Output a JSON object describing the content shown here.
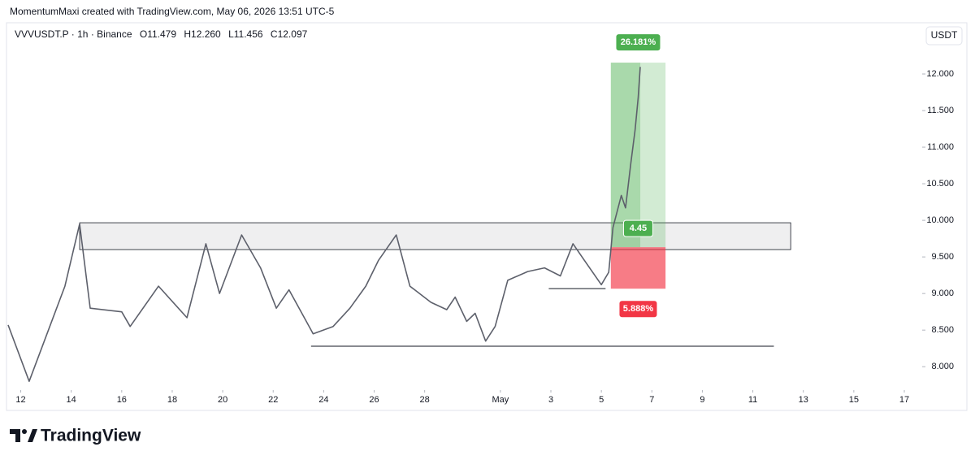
{
  "header": {
    "credit": "MomentumMaxi created with TradingView.com, May 06, 2026 13:51 UTC-5"
  },
  "chart_data": {
    "type": "line",
    "symbol": "VVVUSDT.P · 1h · Binance",
    "ohlc": [
      "O11.479",
      "H12.260",
      "L11.456",
      "C12.097"
    ],
    "currency": "USDT",
    "color": "#5d606b",
    "x": [
      "2026-04-11T12:00",
      "2026-04-12T08:00",
      "2026-04-13T18:00",
      "2026-04-14T08:00",
      "2026-04-14T18:00",
      "2026-04-16T00:00",
      "2026-04-16T08:00",
      "2026-04-17T11:00",
      "2026-04-18T14:00",
      "2026-04-19T08:00",
      "2026-04-19T21:00",
      "2026-04-20T18:00",
      "2026-04-21T12:00",
      "2026-04-22T03:00",
      "2026-04-22T15:00",
      "2026-04-23T14:00",
      "2026-04-24T09:00",
      "2026-04-25T01:00",
      "2026-04-25T16:00",
      "2026-04-26T04:00",
      "2026-04-26T21:00",
      "2026-04-27T10:00",
      "2026-04-28T06:00",
      "2026-04-28T21:00",
      "2026-04-29T05:00",
      "2026-04-29T16:00",
      "2026-04-30T00:00",
      "2026-04-30T10:00",
      "2026-04-30T19:00",
      "2026-05-01T07:00",
      "2026-05-02T02:00",
      "2026-05-02T18:00",
      "2026-05-03T09:00",
      "2026-05-03T21:00",
      "2026-05-04T08:00",
      "2026-05-05T00:00",
      "2026-05-05T07:00",
      "2026-05-05T11:00",
      "2026-05-05T19:00",
      "2026-05-05T23:00",
      "2026-05-06T04:00",
      "2026-05-06T08:00",
      "2026-05-06T11:00",
      "2026-05-06T13:00"
    ],
    "values": [
      8.57,
      7.8,
      9.1,
      9.95,
      8.8,
      8.75,
      8.55,
      9.1,
      8.67,
      9.68,
      9.0,
      9.8,
      9.35,
      8.8,
      9.05,
      8.45,
      8.55,
      8.8,
      9.1,
      9.45,
      9.8,
      9.1,
      8.88,
      8.78,
      8.95,
      8.62,
      8.73,
      8.35,
      8.55,
      9.18,
      9.3,
      9.35,
      9.24,
      9.68,
      9.45,
      9.12,
      9.29,
      9.9,
      10.34,
      10.17,
      10.78,
      11.23,
      11.68,
      12.097
    ],
    "xlim": [
      "2026-04-11T12:00",
      "2026-05-17T17:00"
    ],
    "ylim": [
      7.68,
      12.7
    ],
    "yticks": [
      {
        "value": 8,
        "label": "8.000"
      },
      {
        "value": 8.5,
        "label": "8.500"
      },
      {
        "value": 9,
        "label": "9.000"
      },
      {
        "value": 9.5,
        "label": "9.500"
      },
      {
        "value": 10,
        "label": "10.000"
      },
      {
        "value": 10.5,
        "label": "10.500"
      },
      {
        "value": 11,
        "label": "11.000"
      },
      {
        "value": 11.5,
        "label": "11.500"
      },
      {
        "value": 12,
        "label": "12.000"
      }
    ],
    "xticks": [
      {
        "value": "2026-04-12T00:00",
        "label": "12"
      },
      {
        "value": "2026-04-14T00:00",
        "label": "14"
      },
      {
        "value": "2026-04-16T00:00",
        "label": "16"
      },
      {
        "value": "2026-04-18T00:00",
        "label": "18"
      },
      {
        "value": "2026-04-20T00:00",
        "label": "20"
      },
      {
        "value": "2026-04-22T00:00",
        "label": "22"
      },
      {
        "value": "2026-04-24T00:00",
        "label": "24"
      },
      {
        "value": "2026-04-26T00:00",
        "label": "26"
      },
      {
        "value": "2026-04-28T00:00",
        "label": "28"
      },
      {
        "value": "2026-05-01T00:00",
        "label": "May"
      },
      {
        "value": "2026-05-03T00:00",
        "label": "3"
      },
      {
        "value": "2026-05-05T00:00",
        "label": "5"
      },
      {
        "value": "2026-05-07T00:00",
        "label": "7"
      },
      {
        "value": "2026-05-09T00:00",
        "label": "9"
      },
      {
        "value": "2026-05-11T00:00",
        "label": "11"
      },
      {
        "value": "2026-05-13T00:00",
        "label": "13"
      },
      {
        "value": "2026-05-15T00:00",
        "label": "15"
      },
      {
        "value": "2026-05-17T00:00",
        "label": "17"
      }
    ],
    "zones": [
      {
        "start": "2026-04-14T08:00",
        "end": "2026-05-12T12:00",
        "top": 9.967,
        "bottom": 9.6
      }
    ],
    "lines": [
      {
        "start": "2026-04-23T12:00",
        "end": "2026-05-11T20:00",
        "value": 8.28
      },
      {
        "start": "2026-05-02T22:00",
        "end": "2026-05-05T04:00",
        "value": 9.067
      }
    ],
    "position": {
      "start": "2026-05-05T09:00",
      "end": "2026-05-07T13:00",
      "entry": 9.633,
      "target_pct": 26.181,
      "stop_pct": 5.888,
      "ratio": 4.45,
      "value_labels": {
        "target_pct": "26.181%",
        "stop_pct": "5.888%"
      }
    }
  },
  "footer": {
    "brand": "TradingView"
  }
}
